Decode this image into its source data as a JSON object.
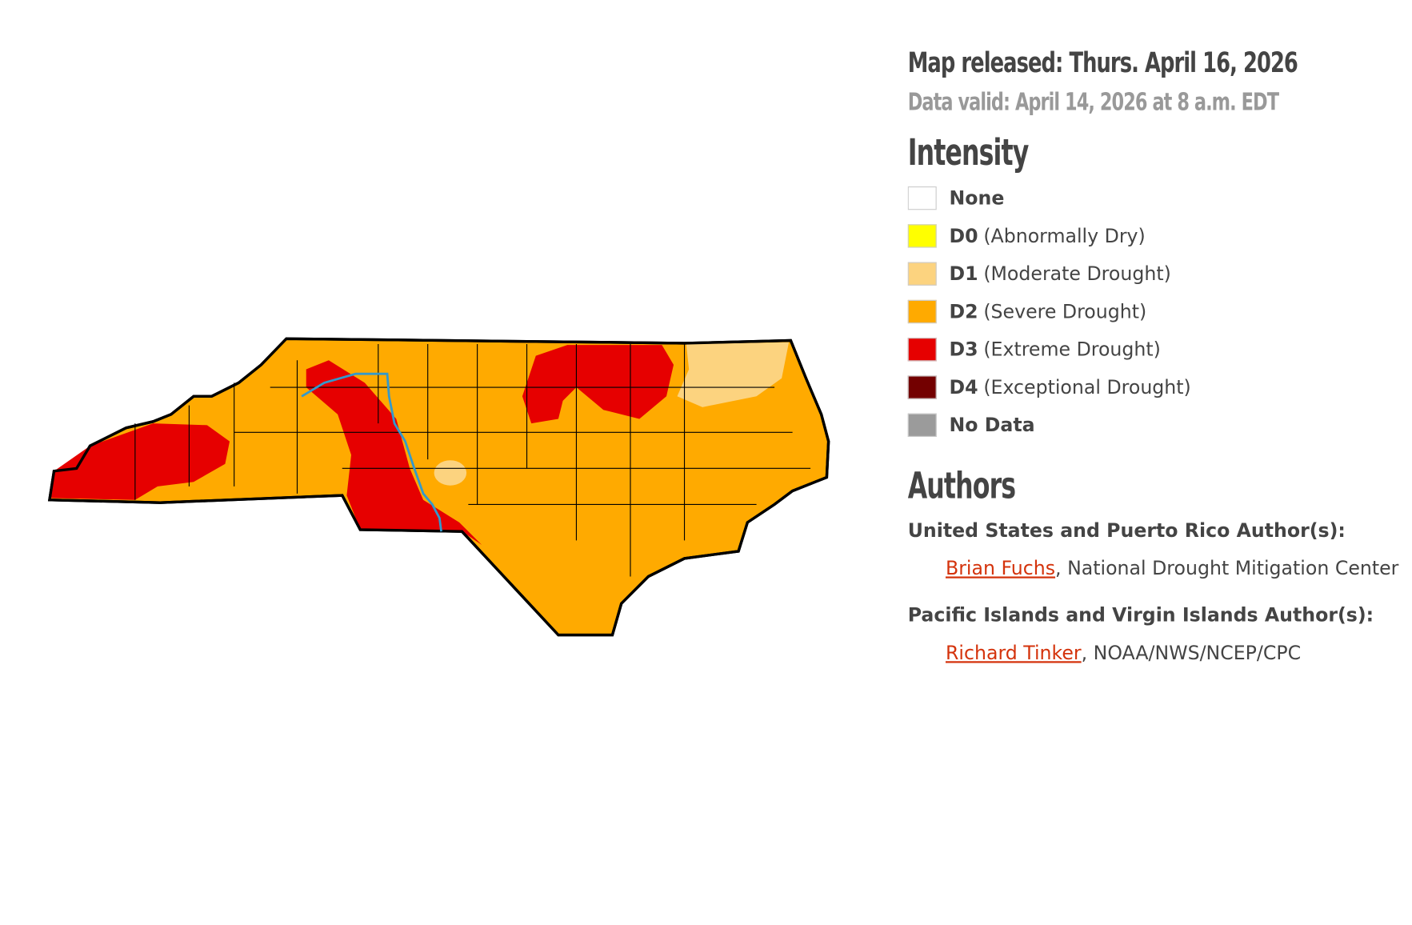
{
  "header": {
    "released": "Map released: Thurs. April 16, 2026",
    "valid": "Data valid: April 14, 2026 at 8 a.m. EDT"
  },
  "legend": {
    "title": "Intensity",
    "items": [
      {
        "label": "None",
        "color": "#ffffff"
      },
      {
        "code": "D0",
        "label": "(Abnormally Dry)",
        "color": "#ffff00"
      },
      {
        "code": "D1",
        "label": "(Moderate Drought)",
        "color": "#fcd37f"
      },
      {
        "code": "D2",
        "label": "(Severe Drought)",
        "color": "#ffaa00"
      },
      {
        "code": "D3",
        "label": "(Extreme Drought)",
        "color": "#e60000"
      },
      {
        "code": "D4",
        "label": "(Exceptional Drought)",
        "color": "#730000"
      },
      {
        "label": "No Data",
        "color": "#9b9b9b"
      }
    ]
  },
  "authors": {
    "title": "Authors",
    "groups": [
      {
        "heading": "United States and Puerto Rico Author(s):",
        "name": "Brian Fuchs",
        "affiliation": ", National Drought Mitigation Center"
      },
      {
        "heading": "Pacific Islands and Virgin Islands Author(s):",
        "name": "Richard Tinker",
        "affiliation": ", NOAA/NWS/NCEP/CPC"
      }
    ]
  }
}
